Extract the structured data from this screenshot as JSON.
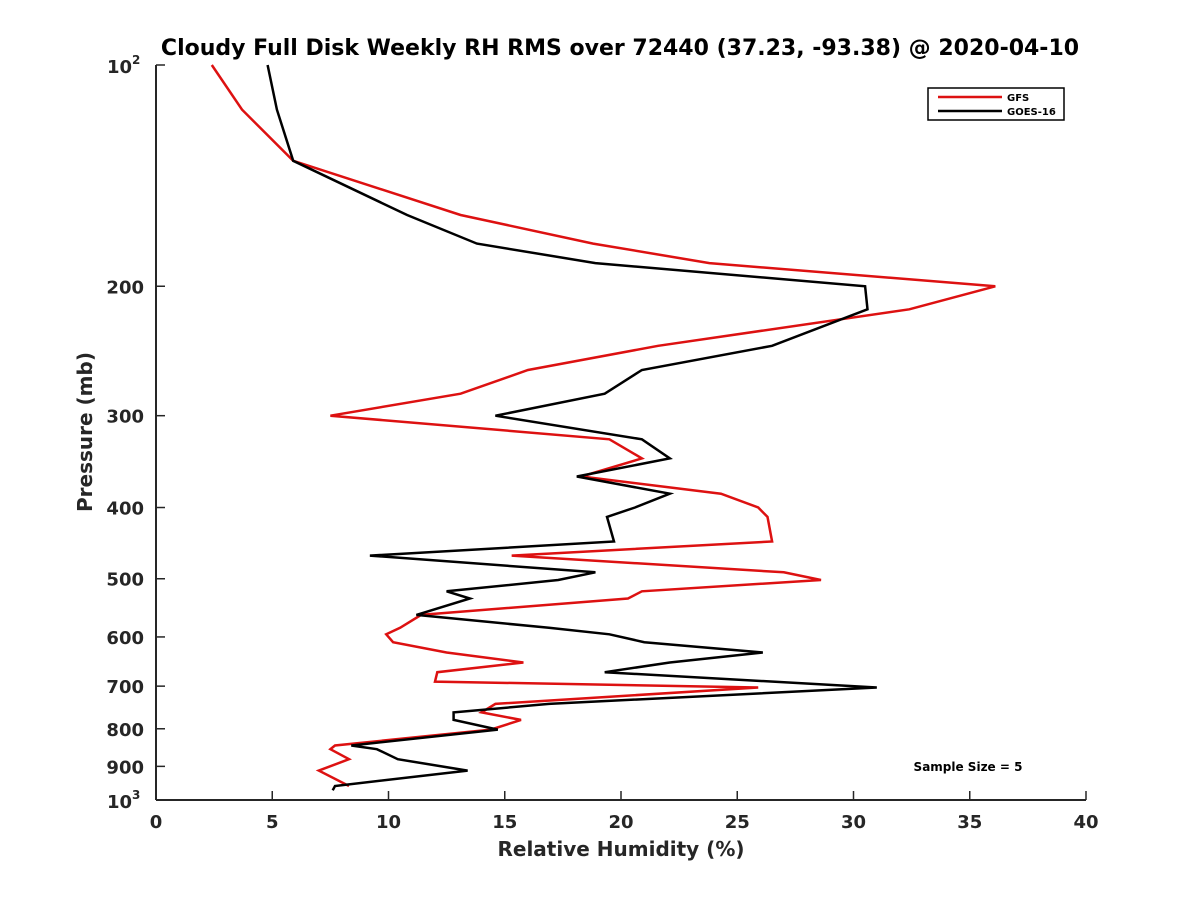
{
  "chart_data": {
    "type": "line",
    "title": "Cloudy Full Disk Weekly RH RMS over 72440 (37.23, -93.38) @ 2020-04-10",
    "xlabel": "Relative Humidity (%)",
    "ylabel": "Pressure (mb)",
    "xlim": [
      0,
      40
    ],
    "ylim": [
      100,
      1000
    ],
    "y_scale": "log",
    "y_reversed": true,
    "x_ticks": [
      0,
      5,
      10,
      15,
      20,
      25,
      30,
      35,
      40
    ],
    "y_ticks": [
      {
        "value": 100,
        "label": "10",
        "sup": "2"
      },
      {
        "value": 200,
        "label": "200"
      },
      {
        "value": 300,
        "label": "300"
      },
      {
        "value": 400,
        "label": "400"
      },
      {
        "value": 500,
        "label": "500"
      },
      {
        "value": 600,
        "label": "600"
      },
      {
        "value": 700,
        "label": "700"
      },
      {
        "value": 800,
        "label": "800"
      },
      {
        "value": 900,
        "label": "900"
      },
      {
        "value": 1000,
        "label": "10",
        "sup": "3"
      }
    ],
    "grid": false,
    "legend_position": "top-right",
    "annotation": "Sample Size = 5",
    "series": [
      {
        "name": "GFS",
        "color": "#dd1111",
        "points": [
          [
            2.4,
            100
          ],
          [
            3.7,
            115
          ],
          [
            5.9,
            135
          ],
          [
            13.1,
            160
          ],
          [
            18.8,
            175
          ],
          [
            23.8,
            186
          ],
          [
            36.1,
            200
          ],
          [
            32.4,
            215
          ],
          [
            21.6,
            241
          ],
          [
            16.0,
            260
          ],
          [
            13.1,
            280
          ],
          [
            7.5,
            300
          ],
          [
            19.5,
            323
          ],
          [
            20.9,
            343
          ],
          [
            18.3,
            363
          ],
          [
            24.3,
            383
          ],
          [
            25.9,
            400
          ],
          [
            26.3,
            412
          ],
          [
            26.5,
            445
          ],
          [
            15.3,
            465
          ],
          [
            27.0,
            490
          ],
          [
            28.6,
            502
          ],
          [
            20.9,
            520
          ],
          [
            20.3,
            532
          ],
          [
            11.4,
            560
          ],
          [
            10.5,
            583
          ],
          [
            9.9,
            595
          ],
          [
            10.2,
            610
          ],
          [
            12.5,
            630
          ],
          [
            15.8,
            650
          ],
          [
            12.1,
            670
          ],
          [
            12.0,
            690
          ],
          [
            25.9,
            703
          ],
          [
            14.6,
            740
          ],
          [
            14.0,
            760
          ],
          [
            15.7,
            778
          ],
          [
            14.4,
            802
          ],
          [
            7.7,
            843
          ],
          [
            7.5,
            853
          ],
          [
            8.3,
            880
          ],
          [
            7.0,
            912
          ],
          [
            8.3,
            957
          ]
        ]
      },
      {
        "name": "GOES-16",
        "color": "#000000",
        "points": [
          [
            4.8,
            100
          ],
          [
            5.2,
            115
          ],
          [
            5.9,
            135
          ],
          [
            10.8,
            160
          ],
          [
            13.8,
            175
          ],
          [
            18.9,
            186
          ],
          [
            30.5,
            200
          ],
          [
            30.6,
            215
          ],
          [
            26.5,
            241
          ],
          [
            20.9,
            260
          ],
          [
            19.3,
            280
          ],
          [
            14.6,
            300
          ],
          [
            20.9,
            323
          ],
          [
            22.1,
            343
          ],
          [
            18.1,
            363
          ],
          [
            22.1,
            383
          ],
          [
            20.6,
            400
          ],
          [
            19.4,
            412
          ],
          [
            19.7,
            445
          ],
          [
            9.2,
            465
          ],
          [
            18.9,
            490
          ],
          [
            17.3,
            502
          ],
          [
            12.5,
            520
          ],
          [
            13.5,
            532
          ],
          [
            11.2,
            560
          ],
          [
            16.9,
            583
          ],
          [
            19.5,
            595
          ],
          [
            21.0,
            610
          ],
          [
            26.1,
            630
          ],
          [
            22.1,
            650
          ],
          [
            19.3,
            670
          ],
          [
            31.0,
            703
          ],
          [
            16.9,
            740
          ],
          [
            12.8,
            760
          ],
          [
            12.8,
            778
          ],
          [
            14.7,
            802
          ],
          [
            8.4,
            843
          ],
          [
            9.5,
            853
          ],
          [
            10.4,
            880
          ],
          [
            13.4,
            912
          ],
          [
            7.7,
            957
          ],
          [
            7.6,
            970
          ]
        ]
      }
    ]
  }
}
